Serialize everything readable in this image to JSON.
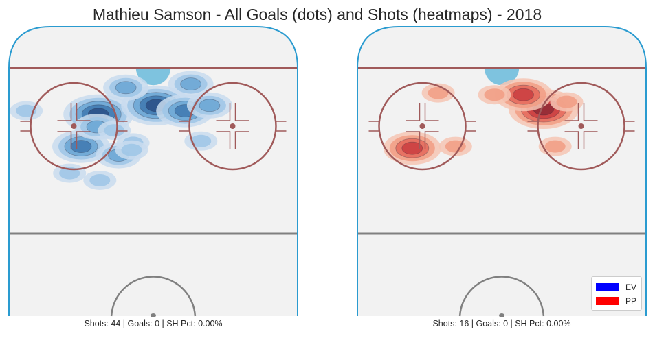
{
  "title": "Mathieu Samson - All Goals (dots) and Shots (heatmaps) - 2018",
  "panels": [
    {
      "id": "ev",
      "strength": "EV",
      "caption": "Shots: 44 | Goals: 0 | SH Pct: 0.00%"
    },
    {
      "id": "pp",
      "strength": "PP",
      "caption": "Shots: 16 | Goals: 0 | SH Pct: 0.00%"
    }
  ],
  "legend": {
    "items": [
      {
        "label": "EV",
        "color": "#0000ff"
      },
      {
        "label": "PP",
        "color": "#ff0000"
      }
    ]
  },
  "colors": {
    "rink_fill": "#f2f2f2",
    "boards": "#2a9bd0",
    "goal_line": "#a05a5a",
    "faceoff": "#a05a5a",
    "crease": "#7ec3df",
    "center_line": "#808080",
    "ev_levels": [
      "#c9dcee",
      "#9ec6e6",
      "#6aa6d3",
      "#3f78b0",
      "#2c4f86"
    ],
    "pp_levels": [
      "#f6c6b4",
      "#f19c84",
      "#e56a5c",
      "#c93d40",
      "#8f2a35"
    ]
  },
  "chart_data": {
    "type": "heatmap",
    "title": "Mathieu Samson - All Goals (dots) and Shots (heatmaps) - 2018",
    "panels": [
      {
        "name": "EV",
        "shots": 44,
        "goals": 0,
        "sh_pct": "0.00%",
        "density_peaks": [
          {
            "x": -38,
            "y": 67,
            "level": 4
          },
          {
            "x": 2,
            "y": 72,
            "level": 4
          },
          {
            "x": 22,
            "y": 69,
            "level": 3
          },
          {
            "x": -19,
            "y": 82,
            "level": 2
          },
          {
            "x": 26,
            "y": 84,
            "level": 2
          },
          {
            "x": -50,
            "y": 49,
            "level": 3
          },
          {
            "x": -24,
            "y": 44,
            "level": 2
          },
          {
            "x": -14,
            "y": 51,
            "level": 1
          },
          {
            "x": -37,
            "y": 30,
            "level": 1
          },
          {
            "x": -15,
            "y": 47,
            "level": 1
          },
          {
            "x": -39,
            "y": 60,
            "level": 2
          },
          {
            "x": -58,
            "y": 34,
            "level": 1
          },
          {
            "x": 33,
            "y": 52,
            "level": 1
          },
          {
            "x": -27,
            "y": 58,
            "level": 1
          },
          {
            "x": -88,
            "y": 69,
            "level": 1
          },
          {
            "x": 39,
            "y": 72,
            "level": 2
          }
        ]
      },
      {
        "name": "PP",
        "shots": 16,
        "goals": 0,
        "sh_pct": "0.00%",
        "density_peaks": [
          {
            "x": 29,
            "y": 70,
            "level": 4
          },
          {
            "x": 15,
            "y": 78,
            "level": 3
          },
          {
            "x": -62,
            "y": 48,
            "level": 3
          },
          {
            "x": 37,
            "y": 49,
            "level": 1
          },
          {
            "x": -5,
            "y": 78,
            "level": 1
          },
          {
            "x": -32,
            "y": 49,
            "level": 1
          },
          {
            "x": -44,
            "y": 79,
            "level": 1
          },
          {
            "x": 45,
            "y": 74,
            "level": 1
          }
        ]
      }
    ]
  }
}
